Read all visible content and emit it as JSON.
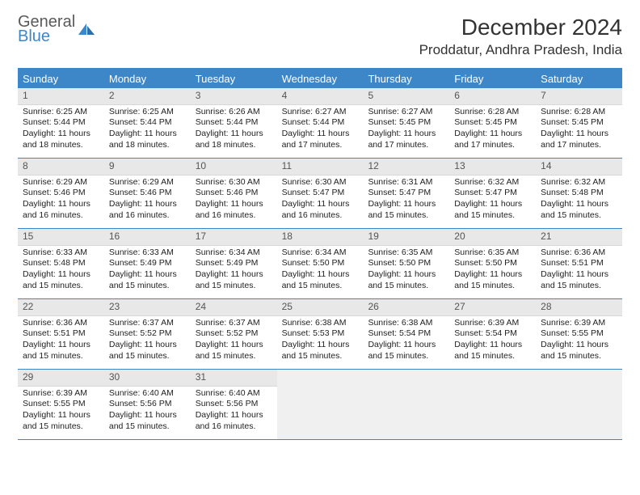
{
  "logo": {
    "line1": "General",
    "line2": "Blue"
  },
  "title": "December 2024",
  "location": "Proddatur, Andhra Pradesh, India",
  "colors": {
    "accent": "#3d87c9",
    "header_bg": "#3d87c9",
    "header_text": "#ffffff",
    "daynum_bg": "#e8e8e8",
    "cell_border": "#3d87c9",
    "empty_bg": "#f0f0f0",
    "body_text": "#222222"
  },
  "day_headers": [
    "Sunday",
    "Monday",
    "Tuesday",
    "Wednesday",
    "Thursday",
    "Friday",
    "Saturday"
  ],
  "layout": {
    "columns": 7,
    "rows": 5,
    "cell_font_size_pt": 8,
    "header_font_size_pt": 10,
    "title_font_size_pt": 21
  },
  "weeks": [
    [
      {
        "n": "1",
        "sr": "6:25 AM",
        "ss": "5:44 PM",
        "dl": "11 hours and 18 minutes."
      },
      {
        "n": "2",
        "sr": "6:25 AM",
        "ss": "5:44 PM",
        "dl": "11 hours and 18 minutes."
      },
      {
        "n": "3",
        "sr": "6:26 AM",
        "ss": "5:44 PM",
        "dl": "11 hours and 18 minutes."
      },
      {
        "n": "4",
        "sr": "6:27 AM",
        "ss": "5:44 PM",
        "dl": "11 hours and 17 minutes."
      },
      {
        "n": "5",
        "sr": "6:27 AM",
        "ss": "5:45 PM",
        "dl": "11 hours and 17 minutes."
      },
      {
        "n": "6",
        "sr": "6:28 AM",
        "ss": "5:45 PM",
        "dl": "11 hours and 17 minutes."
      },
      {
        "n": "7",
        "sr": "6:28 AM",
        "ss": "5:45 PM",
        "dl": "11 hours and 17 minutes."
      }
    ],
    [
      {
        "n": "8",
        "sr": "6:29 AM",
        "ss": "5:46 PM",
        "dl": "11 hours and 16 minutes."
      },
      {
        "n": "9",
        "sr": "6:29 AM",
        "ss": "5:46 PM",
        "dl": "11 hours and 16 minutes."
      },
      {
        "n": "10",
        "sr": "6:30 AM",
        "ss": "5:46 PM",
        "dl": "11 hours and 16 minutes."
      },
      {
        "n": "11",
        "sr": "6:30 AM",
        "ss": "5:47 PM",
        "dl": "11 hours and 16 minutes."
      },
      {
        "n": "12",
        "sr": "6:31 AM",
        "ss": "5:47 PM",
        "dl": "11 hours and 15 minutes."
      },
      {
        "n": "13",
        "sr": "6:32 AM",
        "ss": "5:47 PM",
        "dl": "11 hours and 15 minutes."
      },
      {
        "n": "14",
        "sr": "6:32 AM",
        "ss": "5:48 PM",
        "dl": "11 hours and 15 minutes."
      }
    ],
    [
      {
        "n": "15",
        "sr": "6:33 AM",
        "ss": "5:48 PM",
        "dl": "11 hours and 15 minutes."
      },
      {
        "n": "16",
        "sr": "6:33 AM",
        "ss": "5:49 PM",
        "dl": "11 hours and 15 minutes."
      },
      {
        "n": "17",
        "sr": "6:34 AM",
        "ss": "5:49 PM",
        "dl": "11 hours and 15 minutes."
      },
      {
        "n": "18",
        "sr": "6:34 AM",
        "ss": "5:50 PM",
        "dl": "11 hours and 15 minutes."
      },
      {
        "n": "19",
        "sr": "6:35 AM",
        "ss": "5:50 PM",
        "dl": "11 hours and 15 minutes."
      },
      {
        "n": "20",
        "sr": "6:35 AM",
        "ss": "5:50 PM",
        "dl": "11 hours and 15 minutes."
      },
      {
        "n": "21",
        "sr": "6:36 AM",
        "ss": "5:51 PM",
        "dl": "11 hours and 15 minutes."
      }
    ],
    [
      {
        "n": "22",
        "sr": "6:36 AM",
        "ss": "5:51 PM",
        "dl": "11 hours and 15 minutes."
      },
      {
        "n": "23",
        "sr": "6:37 AM",
        "ss": "5:52 PM",
        "dl": "11 hours and 15 minutes."
      },
      {
        "n": "24",
        "sr": "6:37 AM",
        "ss": "5:52 PM",
        "dl": "11 hours and 15 minutes."
      },
      {
        "n": "25",
        "sr": "6:38 AM",
        "ss": "5:53 PM",
        "dl": "11 hours and 15 minutes."
      },
      {
        "n": "26",
        "sr": "6:38 AM",
        "ss": "5:54 PM",
        "dl": "11 hours and 15 minutes."
      },
      {
        "n": "27",
        "sr": "6:39 AM",
        "ss": "5:54 PM",
        "dl": "11 hours and 15 minutes."
      },
      {
        "n": "28",
        "sr": "6:39 AM",
        "ss": "5:55 PM",
        "dl": "11 hours and 15 minutes."
      }
    ],
    [
      {
        "n": "29",
        "sr": "6:39 AM",
        "ss": "5:55 PM",
        "dl": "11 hours and 15 minutes."
      },
      {
        "n": "30",
        "sr": "6:40 AM",
        "ss": "5:56 PM",
        "dl": "11 hours and 15 minutes."
      },
      {
        "n": "31",
        "sr": "6:40 AM",
        "ss": "5:56 PM",
        "dl": "11 hours and 16 minutes."
      },
      null,
      null,
      null,
      null
    ]
  ],
  "labels": {
    "sunrise_prefix": "Sunrise: ",
    "sunset_prefix": "Sunset: ",
    "daylight_prefix": "Daylight: "
  }
}
